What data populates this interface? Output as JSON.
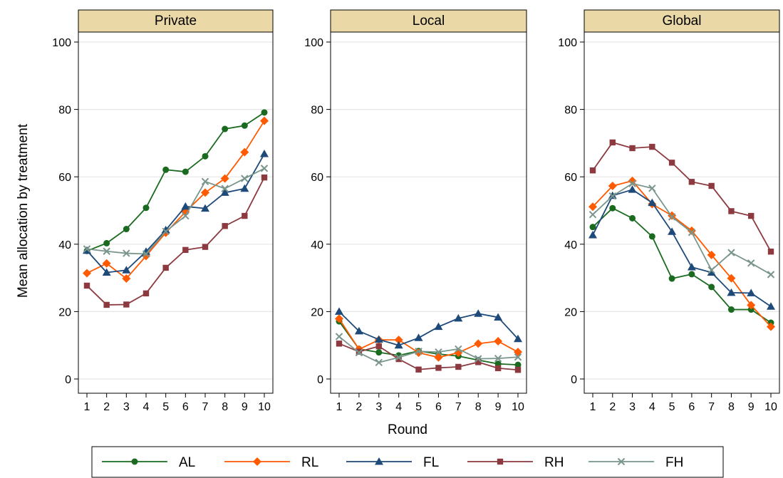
{
  "chart_data": {
    "type": "line",
    "ylabel": "Mean allocation by treatment",
    "xlabel": "Round",
    "x": [
      1,
      2,
      3,
      4,
      5,
      6,
      7,
      8,
      9,
      10
    ],
    "ylim": [
      0,
      100
    ],
    "yticks": [
      0,
      20,
      40,
      60,
      80,
      100
    ],
    "grid": true,
    "legend_position": "bottom",
    "series_styles": [
      {
        "name": "AL",
        "color": "#1a6b1f",
        "marker": "circle"
      },
      {
        "name": "RL",
        "color": "#ff5a00",
        "marker": "diamond"
      },
      {
        "name": "FL",
        "color": "#1e4a7a",
        "marker": "triangle"
      },
      {
        "name": "RH",
        "color": "#8c3a3f",
        "marker": "square"
      },
      {
        "name": "FH",
        "color": "#7a968c",
        "marker": "x"
      }
    ],
    "panels": [
      {
        "title": "Private",
        "series": [
          {
            "name": "AL",
            "values": [
              38,
              40.3,
              44.5,
              50.8,
              62.1,
              61.5,
              66.1,
              74.2,
              75.2,
              79.1
            ]
          },
          {
            "name": "RL",
            "values": [
              31.4,
              34.3,
              29.8,
              36.5,
              43.4,
              49.6,
              55.3,
              59.5,
              67.3,
              76.6
            ]
          },
          {
            "name": "FL",
            "values": [
              38.1,
              31.6,
              32.3,
              37.8,
              44.2,
              51.2,
              50.6,
              55.3,
              56.5,
              66.8
            ]
          },
          {
            "name": "RH",
            "values": [
              27.7,
              22,
              22.1,
              25.4,
              33,
              38.3,
              39.2,
              45.4,
              48.4,
              59.8
            ]
          },
          {
            "name": "FH",
            "values": [
              38.6,
              37.9,
              37.3,
              37.1,
              43.8,
              48.4,
              58.6,
              56.5,
              59.5,
              62.5
            ]
          }
        ]
      },
      {
        "title": "Local",
        "series": [
          {
            "name": "AL",
            "values": [
              17.1,
              8.9,
              7.9,
              7,
              8.3,
              7.4,
              6.8,
              5.6,
              4.5,
              4.2
            ]
          },
          {
            "name": "RL",
            "values": [
              17.9,
              8.8,
              11.6,
              11.6,
              7.8,
              6.4,
              7.8,
              10.5,
              11.2,
              8
            ]
          },
          {
            "name": "FL",
            "values": [
              20,
              14.2,
              11.7,
              10,
              12.2,
              15.5,
              18,
              19.4,
              18.3,
              11.9
            ]
          },
          {
            "name": "RH",
            "values": [
              10.5,
              8.1,
              9.7,
              5.9,
              2.8,
              3.3,
              3.6,
              5,
              3.2,
              2.7
            ]
          },
          {
            "name": "FH",
            "values": [
              12.6,
              7.8,
              4.9,
              6.4,
              8.2,
              8,
              8.9,
              6,
              6.1,
              6.5
            ]
          }
        ]
      },
      {
        "title": "Global",
        "series": [
          {
            "name": "AL",
            "values": [
              45.1,
              50.7,
              47.7,
              42.3,
              29.8,
              31.1,
              27.3,
              20.6,
              20.6,
              16.7
            ]
          },
          {
            "name": "RL",
            "values": [
              51.1,
              57.3,
              58.8,
              51.9,
              48.5,
              44,
              36.8,
              29.9,
              21.9,
              15.5
            ]
          },
          {
            "name": "FL",
            "values": [
              42.7,
              54.4,
              56.2,
              52.3,
              43.7,
              33.2,
              31.6,
              25.6,
              25.5,
              21.5
            ]
          },
          {
            "name": "RH",
            "values": [
              61.9,
              70.2,
              68.5,
              68.9,
              64.2,
              58.5,
              57.3,
              49.8,
              48.4,
              37.8
            ]
          },
          {
            "name": "FH",
            "values": [
              48.8,
              54.3,
              58,
              56.6,
              48.1,
              43.5,
              32.3,
              37.5,
              34.4,
              31
            ]
          }
        ]
      }
    ]
  }
}
